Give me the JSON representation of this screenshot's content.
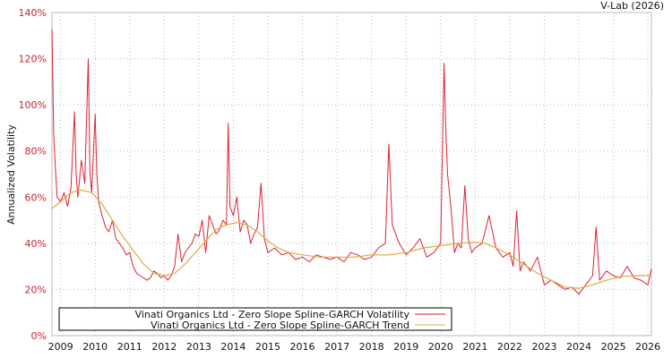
{
  "credit": "V-Lab (2026)",
  "chart_data": {
    "type": "line",
    "title": "",
    "xlabel": "",
    "ylabel": "Annualized Volatility",
    "ylim": [
      0,
      140
    ],
    "xlim": [
      2008.75,
      2026.1
    ],
    "grid": true,
    "legend_position": "bottom-left-inside",
    "y_ticks": [
      "0%",
      "20%",
      "40%",
      "60%",
      "80%",
      "100%",
      "120%",
      "140%"
    ],
    "y_tick_values": [
      0,
      20,
      40,
      60,
      80,
      100,
      120,
      140
    ],
    "x_ticks": [
      "2009",
      "2010",
      "2011",
      "2012",
      "2013",
      "2014",
      "2015",
      "2016",
      "2017",
      "2018",
      "2019",
      "2020",
      "2021",
      "2022",
      "2023",
      "2024",
      "2025",
      "2026"
    ],
    "x_tick_values": [
      2009,
      2010,
      2011,
      2012,
      2013,
      2014,
      2015,
      2016,
      2017,
      2018,
      2019,
      2020,
      2021,
      2022,
      2023,
      2024,
      2025,
      2026
    ],
    "series": [
      {
        "name": "Vinati Organics Ltd - Zero Slope Spline-GARCH Volatility",
        "color": "#dd2233",
        "x": [
          2008.75,
          2008.8,
          2008.85,
          2008.9,
          2009.0,
          2009.1,
          2009.2,
          2009.3,
          2009.4,
          2009.45,
          2009.5,
          2009.6,
          2009.7,
          2009.8,
          2009.85,
          2009.9,
          2010.0,
          2010.05,
          2010.1,
          2010.2,
          2010.3,
          2010.4,
          2010.5,
          2010.6,
          2010.7,
          2010.8,
          2010.9,
          2011.0,
          2011.1,
          2011.2,
          2011.3,
          2011.4,
          2011.5,
          2011.6,
          2011.7,
          2011.8,
          2011.9,
          2012.0,
          2012.1,
          2012.2,
          2012.3,
          2012.4,
          2012.5,
          2012.6,
          2012.7,
          2012.8,
          2012.9,
          2013.0,
          2013.1,
          2013.2,
          2013.3,
          2013.4,
          2013.5,
          2013.6,
          2013.7,
          2013.8,
          2013.85,
          2013.9,
          2014.0,
          2014.1,
          2014.2,
          2014.3,
          2014.4,
          2014.5,
          2014.6,
          2014.7,
          2014.8,
          2014.9,
          2015.0,
          2015.2,
          2015.4,
          2015.6,
          2015.8,
          2016.0,
          2016.2,
          2016.4,
          2016.6,
          2016.8,
          2017.0,
          2017.2,
          2017.4,
          2017.6,
          2017.8,
          2018.0,
          2018.2,
          2018.4,
          2018.5,
          2018.6,
          2018.8,
          2019.0,
          2019.2,
          2019.4,
          2019.6,
          2019.8,
          2020.0,
          2020.1,
          2020.15,
          2020.2,
          2020.3,
          2020.4,
          2020.5,
          2020.6,
          2020.7,
          2020.8,
          2020.9,
          2021.0,
          2021.2,
          2021.4,
          2021.6,
          2021.8,
          2022.0,
          2022.1,
          2022.2,
          2022.3,
          2022.4,
          2022.6,
          2022.8,
          2023.0,
          2023.2,
          2023.4,
          2023.6,
          2023.8,
          2024.0,
          2024.2,
          2024.4,
          2024.5,
          2024.6,
          2024.8,
          2025.0,
          2025.2,
          2025.4,
          2025.6,
          2025.8,
          2026.0,
          2026.1
        ],
        "values": [
          133,
          88,
          72,
          60,
          58,
          62,
          56,
          64,
          97,
          70,
          60,
          76,
          66,
          120,
          70,
          62,
          96,
          70,
          58,
          52,
          47,
          45,
          50,
          42,
          40,
          38,
          35,
          36,
          30,
          27,
          26,
          25,
          24,
          25,
          28,
          27,
          25,
          26,
          24,
          26,
          30,
          44,
          32,
          36,
          38,
          40,
          44,
          43,
          50,
          36,
          52,
          48,
          44,
          46,
          50,
          48,
          92,
          56,
          52,
          60,
          45,
          50,
          48,
          40,
          44,
          47,
          66,
          42,
          36,
          38,
          35,
          36,
          33,
          34,
          32,
          35,
          34,
          33,
          34,
          32,
          36,
          35,
          33,
          34,
          38,
          40,
          83,
          48,
          40,
          35,
          38,
          42,
          34,
          36,
          40,
          118,
          88,
          70,
          55,
          36,
          40,
          38,
          65,
          42,
          36,
          38,
          40,
          52,
          38,
          34,
          36,
          30,
          54,
          28,
          32,
          28,
          34,
          22,
          24,
          22,
          20,
          21,
          18,
          22,
          26,
          47,
          24,
          28,
          26,
          25,
          30,
          25,
          24,
          22,
          29
        ]
      },
      {
        "name": "Vinati Organics Ltd - Zero Slope Spline-GARCH Trend",
        "color": "#ddaa44",
        "x": [
          2008.75,
          2009.0,
          2009.3,
          2009.6,
          2009.9,
          2010.2,
          2010.5,
          2010.8,
          2011.1,
          2011.4,
          2011.7,
          2012.0,
          2012.3,
          2012.6,
          2012.9,
          2013.2,
          2013.5,
          2013.8,
          2014.1,
          2014.4,
          2014.7,
          2015.0,
          2015.3,
          2015.6,
          2016.0,
          2016.5,
          2017.0,
          2017.5,
          2018.0,
          2018.5,
          2019.0,
          2019.5,
          2020.0,
          2020.5,
          2021.0,
          2021.3,
          2021.6,
          2022.0,
          2022.4,
          2022.8,
          2023.2,
          2023.6,
          2024.0,
          2024.4,
          2024.8,
          2025.2,
          2025.6,
          2026.1
        ],
        "values": [
          55,
          58,
          62,
          63,
          62,
          57,
          50,
          43,
          37,
          31,
          27,
          26,
          27,
          31,
          36,
          41,
          46,
          48,
          49,
          48,
          45,
          41,
          38,
          36,
          35,
          34,
          34,
          34,
          35,
          35,
          36,
          38,
          39,
          40,
          40.5,
          40,
          38,
          35,
          31,
          27,
          24,
          21,
          20.5,
          22,
          24,
          25.5,
          26,
          26
        ]
      }
    ]
  }
}
